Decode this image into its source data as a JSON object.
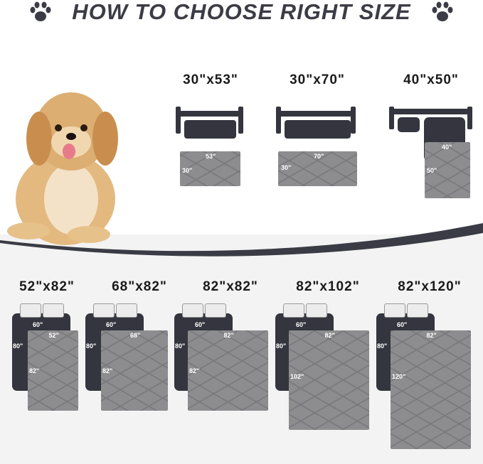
{
  "title": "HOW TO CHOOSE RIGHT SIZE",
  "colors": {
    "dark": "#34353f",
    "pad": "#8d8d90",
    "title": "#3c3c46",
    "background_bottom": "#f3f3f3"
  },
  "icons": [
    "paw-icon",
    "paw-icon"
  ],
  "sofas": [
    {
      "size": "30\"x53\"",
      "width": "53\"",
      "length": "30\""
    },
    {
      "size": "30\"x70\"",
      "width": "70\"",
      "length": "30\""
    },
    {
      "size": "40\"x50\"",
      "width": "40\"",
      "length": "50\""
    }
  ],
  "beds": [
    {
      "size": "52\"x82\"",
      "bed_width": "60\"",
      "bed_length": "80\"",
      "width": "52\"",
      "length": "82\""
    },
    {
      "size": "68\"x82\"",
      "bed_width": "60\"",
      "bed_length": "80\"",
      "width": "68\"",
      "length": "82\""
    },
    {
      "size": "82\"x82\"",
      "bed_width": "60\"",
      "bed_length": "80\"",
      "width": "82\"",
      "length": "82\""
    },
    {
      "size": "82\"x102\"",
      "bed_width": "60\"",
      "bed_length": "80\"",
      "width": "82\"",
      "length": "102\""
    },
    {
      "size": "82\"x120\"",
      "bed_width": "60\"",
      "bed_length": "80\"",
      "width": "82\"",
      "length": "120\""
    }
  ]
}
